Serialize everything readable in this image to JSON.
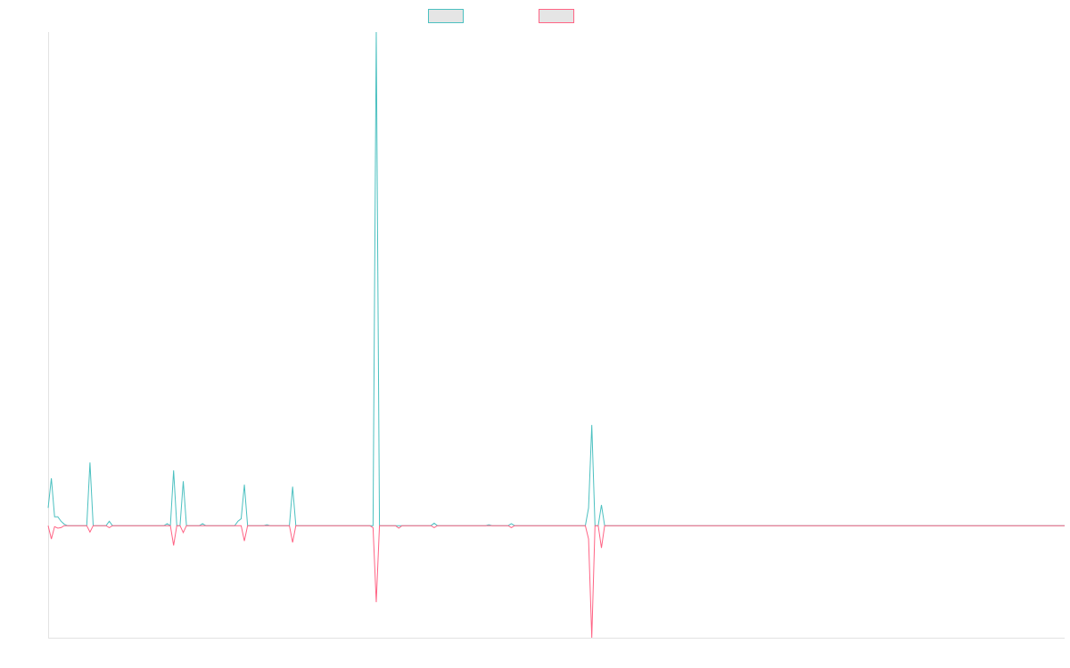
{
  "chart_data": {
    "type": "line",
    "title": "",
    "xlabel": "",
    "ylabel": "",
    "xlim": [
      0,
      316
    ],
    "ylim": [
      -22.7,
      100
    ],
    "grid": false,
    "legend": "top-center",
    "baseline": 0,
    "series": [
      {
        "color": "#4bc0c0",
        "points": [
          [
            0,
            3.6
          ],
          [
            1,
            9.6
          ],
          [
            2,
            1.8
          ],
          [
            3,
            1.8
          ],
          [
            4,
            0.9
          ],
          [
            5,
            0.3
          ],
          [
            13,
            12.8
          ],
          [
            19,
            0.9
          ],
          [
            37,
            0.4
          ],
          [
            39,
            11.2
          ],
          [
            42,
            9.0
          ],
          [
            48,
            0.4
          ],
          [
            59,
            0.9
          ],
          [
            60,
            1.4
          ],
          [
            61,
            8.3
          ],
          [
            68,
            0.2
          ],
          [
            76,
            7.9
          ],
          [
            102,
            100
          ],
          [
            120,
            0.5
          ],
          [
            137,
            0.2
          ],
          [
            144,
            0.4
          ],
          [
            168,
            3.6
          ],
          [
            169,
            20.4
          ],
          [
            172,
            4.2
          ]
        ]
      },
      {
        "color": "#ff6384",
        "points": [
          [
            1,
            -2.7
          ],
          [
            2,
            -0.2
          ],
          [
            3,
            -0.5
          ],
          [
            4,
            -0.4
          ],
          [
            13,
            -1.3
          ],
          [
            19,
            -0.4
          ],
          [
            39,
            -4.0
          ],
          [
            42,
            -1.4
          ],
          [
            61,
            -3.1
          ],
          [
            76,
            -3.4
          ],
          [
            101,
            -0.4
          ],
          [
            102,
            -15.5
          ],
          [
            109,
            -0.5
          ],
          [
            120,
            -0.4
          ],
          [
            144,
            -0.4
          ],
          [
            168,
            -2.7
          ],
          [
            169,
            -22.7
          ],
          [
            172,
            -4.5
          ]
        ]
      }
    ]
  }
}
